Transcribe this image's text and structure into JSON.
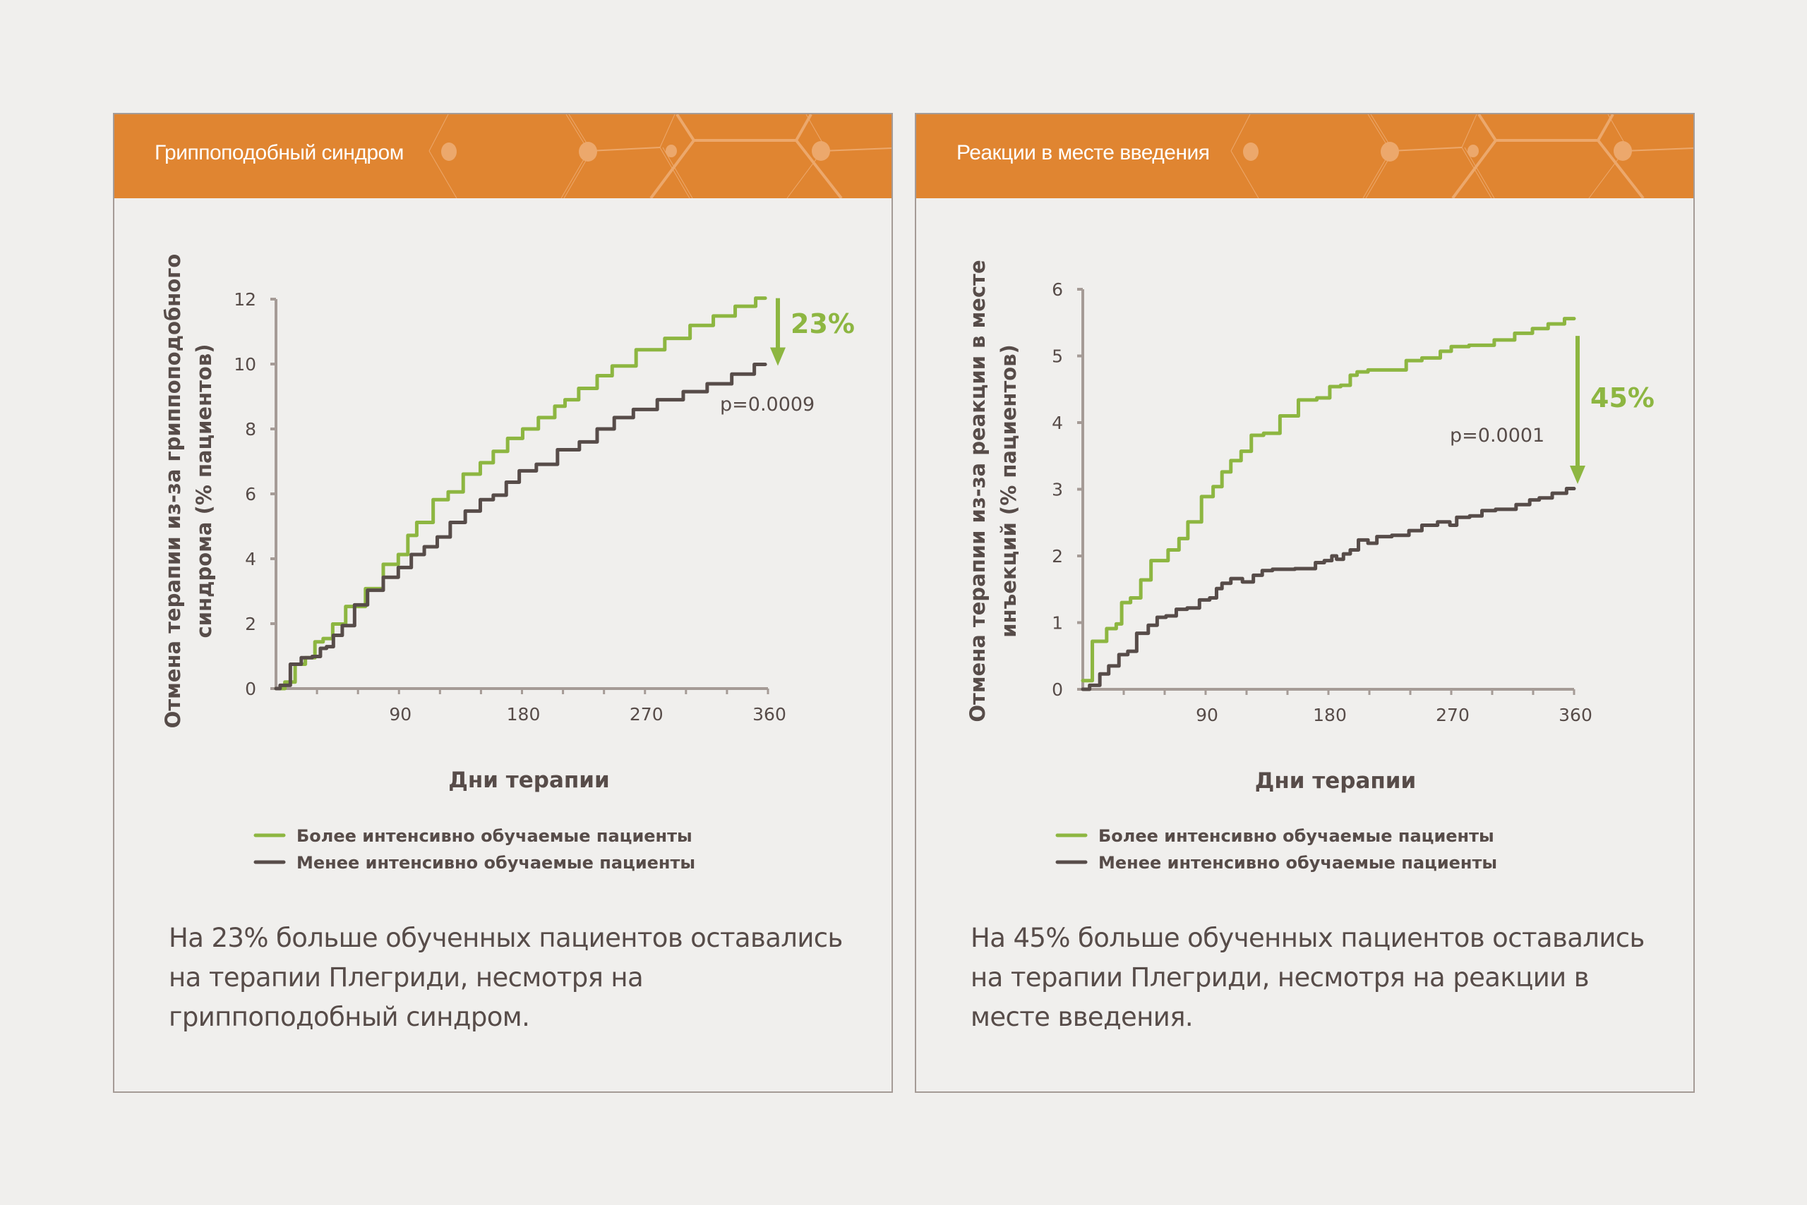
{
  "colors": {
    "header": "#e08531",
    "more_trained": "#8db641",
    "less_trained": "#574c49",
    "axis": "#a59b96",
    "text": "#574c49",
    "background": "#f0efed"
  },
  "chart_data": [
    {
      "type": "line",
      "title": "Гриппоподобный синдром",
      "xlabel": "Дни терапии",
      "ylabel": [
        "Отмена терапии из-за гриппоподобного",
        "синдрома (% пациентов)"
      ],
      "xlim": [
        0,
        360
      ],
      "ylim": [
        0,
        12
      ],
      "xticks": [
        90,
        180,
        270,
        360
      ],
      "xminor_step": 30,
      "yticks": [
        0,
        2,
        4,
        6,
        8,
        10,
        12
      ],
      "grid": false,
      "step": true,
      "legend": "bottom-left",
      "series": [
        {
          "name": "Более интенсивно обучаемые пациенты",
          "color": "#8db641",
          "x": [
            0,
            13,
            15,
            28,
            29,
            40,
            43,
            59,
            72,
            85,
            94,
            99,
            107,
            123,
            129,
            145,
            154,
            164,
            175,
            186,
            198,
            210,
            213,
            230,
            240,
            252,
            275,
            294,
            312,
            328,
            344,
            358
          ],
          "y": [
            0,
            0.2,
            0.75,
            0.95,
            1.44,
            1.54,
            1.99,
            2.53,
            3.08,
            3.83,
            4.13,
            4.72,
            5.12,
            5.82,
            6.06,
            6.61,
            6.96,
            7.31,
            7.71,
            8.0,
            8.35,
            8.7,
            8.9,
            9.25,
            9.64,
            9.94,
            10.44,
            10.79,
            11.19,
            11.48,
            11.78,
            12.03
          ]
        },
        {
          "name": "Менее интенсивно обучаемые пациенты",
          "color": "#574c49",
          "x": [
            0,
            6,
            15,
            22,
            31,
            34,
            40,
            44,
            53,
            62,
            72,
            85,
            94,
            104,
            113,
            123,
            132,
            145,
            154,
            164,
            173,
            183,
            198,
            214,
            230,
            240,
            255,
            268,
            290,
            306,
            325,
            342,
            358
          ],
          "y": [
            0,
            0.1,
            0.75,
            0.95,
            0.99,
            1.24,
            1.29,
            1.64,
            1.94,
            2.58,
            3.03,
            3.43,
            3.73,
            4.13,
            4.37,
            4.67,
            5.12,
            5.47,
            5.82,
            5.96,
            6.36,
            6.71,
            6.91,
            7.36,
            7.6,
            8.0,
            8.35,
            8.6,
            8.9,
            9.15,
            9.39,
            9.69,
            9.99
          ]
        }
      ],
      "annotations": {
        "difference": "23%",
        "p_value": "p=0.0009",
        "arrow_from_y": 12.03,
        "arrow_to_y": 9.99
      },
      "summary": "На 23% больше обученных пациентов оставались на терапии Плегриди, несмотря на гриппоподобный синдром."
    },
    {
      "type": "line",
      "title": "Реакции в месте введения",
      "xlabel": "Дни терапии",
      "ylabel": [
        "Отмена терапии из-за реакции в месте",
        "инъекций (% пациентов)"
      ],
      "xlim": [
        0,
        360
      ],
      "ylim": [
        0,
        6
      ],
      "xticks": [
        90,
        180,
        270,
        360
      ],
      "xminor_step": 30,
      "yticks": [
        0,
        1,
        2,
        3,
        4,
        5,
        6
      ],
      "grid": false,
      "step": true,
      "legend": "bottom-left",
      "series": [
        {
          "name": "Более интенсивно обучаемые пациенты",
          "color": "#8db641",
          "x": [
            0,
            14,
            21,
            28,
            29,
            41,
            44,
            56,
            69,
            72,
            82,
            92,
            99,
            105,
            112,
            120,
            127,
            138,
            151,
            165,
            178,
            184,
            194,
            198,
            204,
            214,
            234,
            240,
            257,
            267,
            273,
            293,
            310,
            323,
            336,
            346,
            360
          ],
          "y": [
            0.13,
            0.72,
            0.91,
            0.98,
            1.3,
            1.37,
            1.64,
            1.93,
            2.09,
            2.26,
            2.51,
            2.89,
            3.04,
            3.26,
            3.43,
            3.57,
            3.81,
            3.84,
            4.1,
            4.34,
            4.37,
            4.54,
            4.56,
            4.71,
            4.76,
            4.79,
            4.79,
            4.93,
            4.97,
            5.07,
            5.14,
            5.16,
            5.24,
            5.34,
            5.41,
            5.48,
            5.56
          ]
        },
        {
          "name": "Менее интенсивно обучаемые пациенты",
          "color": "#574c49",
          "x": [
            0,
            10,
            15,
            23,
            30,
            36,
            43,
            53,
            56,
            66,
            71,
            82,
            89,
            97,
            99,
            105,
            112,
            122,
            128,
            135,
            143,
            168,
            173,
            181,
            184,
            188,
            194,
            198,
            206,
            212,
            219,
            234,
            244,
            253,
            267,
            271,
            277,
            290,
            295,
            310,
            325,
            330,
            339,
            349,
            360
          ],
          "y": [
            0,
            0.06,
            0.23,
            0.35,
            0.52,
            0.57,
            0.84,
            0.96,
            1.08,
            1.1,
            1.2,
            1.22,
            1.34,
            1.37,
            1.51,
            1.59,
            1.66,
            1.61,
            1.71,
            1.78,
            1.8,
            1.81,
            1.9,
            1.93,
            2.0,
            1.95,
            2.03,
            2.09,
            2.24,
            2.19,
            2.29,
            2.31,
            2.38,
            2.46,
            2.51,
            2.46,
            2.58,
            2.6,
            2.68,
            2.7,
            2.77,
            2.84,
            2.87,
            2.94,
            3.01
          ]
        }
      ],
      "annotations": {
        "difference": "45%",
        "p_value": "p=0.0001",
        "arrow_from_y": 5.3,
        "arrow_to_y": 3.1
      },
      "summary": "На 45% больше обученных пациентов оставались на терапии Плегриди, несмотря на реакции в месте введения."
    }
  ]
}
